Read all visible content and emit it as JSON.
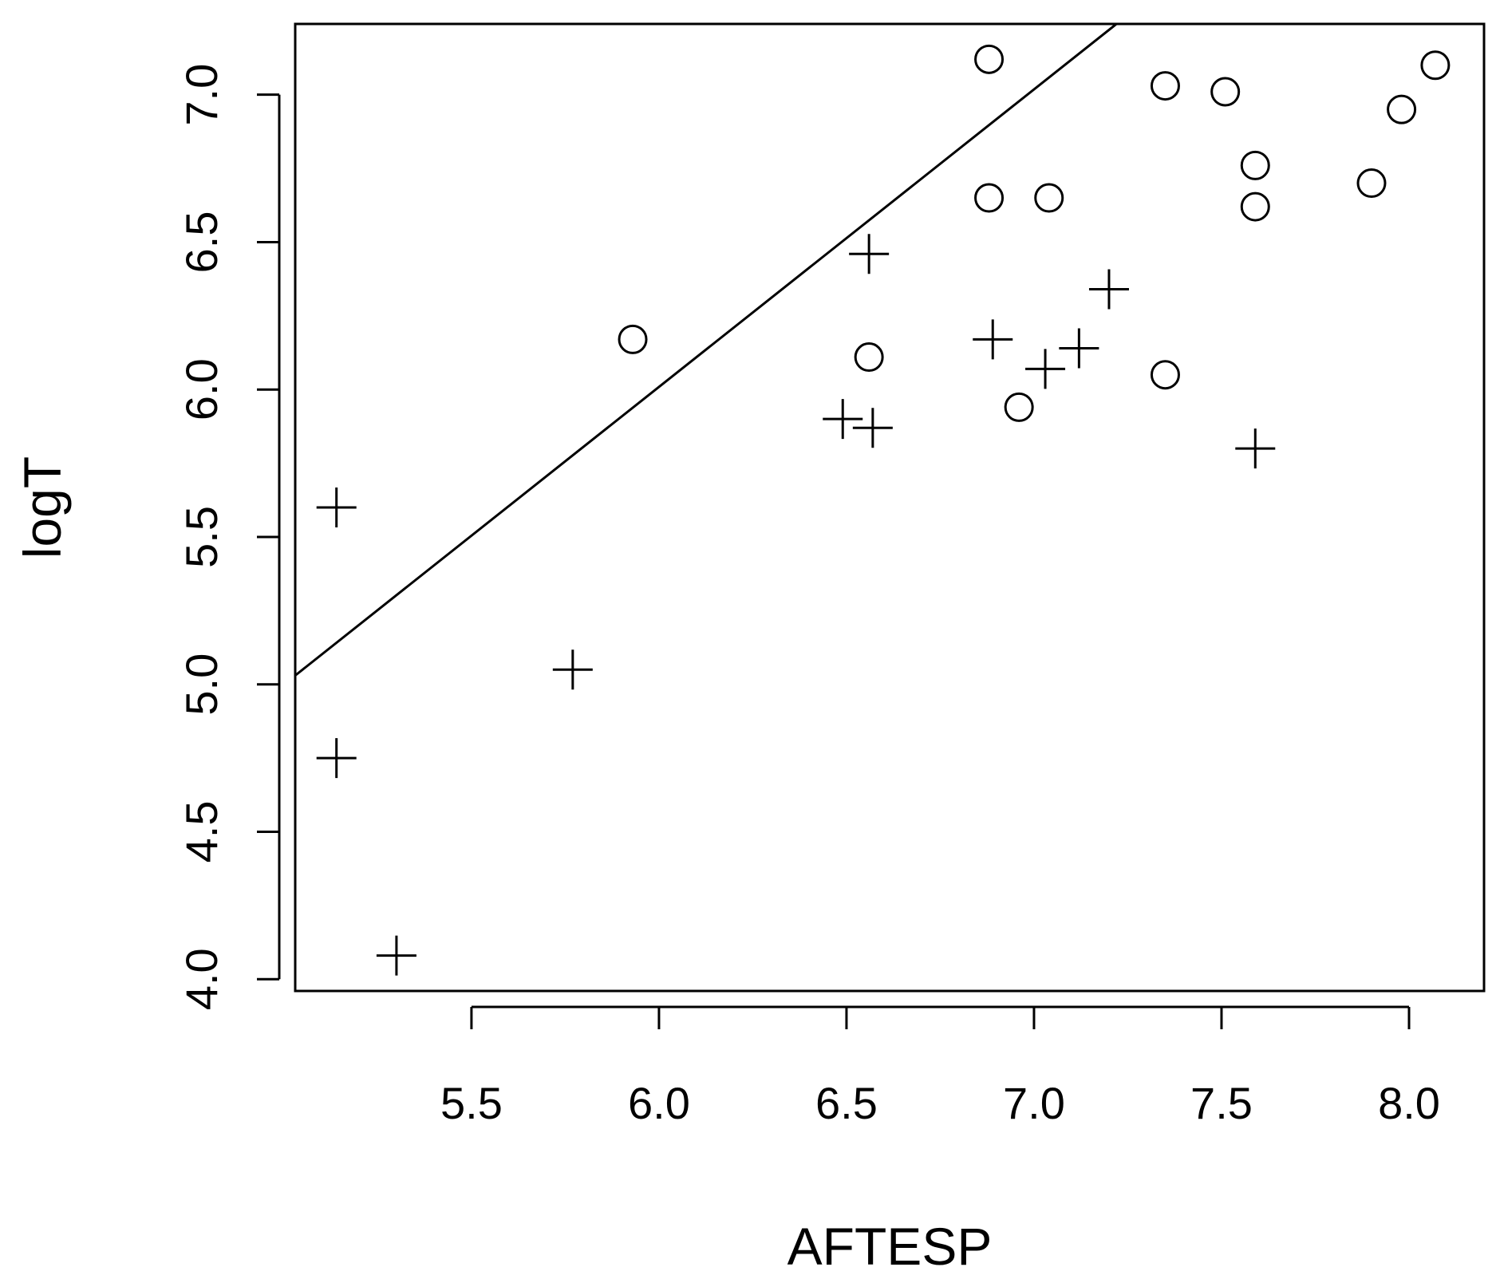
{
  "chart_data": {
    "type": "scatter",
    "xlabel": "AFTESP",
    "ylabel": "logT",
    "xlim": [
      5.03,
      8.2
    ],
    "ylim": [
      3.96,
      7.24
    ],
    "x_ticks": [
      "5.5",
      "6.0",
      "6.5",
      "7.0",
      "7.5",
      "8.0"
    ],
    "y_ticks": [
      "4.0",
      "4.5",
      "5.0",
      "5.5",
      "6.0",
      "6.5",
      "7.0"
    ],
    "grid": false,
    "legend": "none",
    "series": [
      {
        "marker": "circle",
        "points": [
          {
            "x": 5.93,
            "y": 6.17
          },
          {
            "x": 6.56,
            "y": 6.11
          },
          {
            "x": 6.88,
            "y": 7.12
          },
          {
            "x": 6.88,
            "y": 6.65
          },
          {
            "x": 6.96,
            "y": 5.94
          },
          {
            "x": 7.04,
            "y": 6.65
          },
          {
            "x": 7.35,
            "y": 7.03
          },
          {
            "x": 7.35,
            "y": 6.05
          },
          {
            "x": 7.51,
            "y": 7.01
          },
          {
            "x": 7.59,
            "y": 6.76
          },
          {
            "x": 7.59,
            "y": 6.62
          },
          {
            "x": 7.9,
            "y": 6.7
          },
          {
            "x": 7.98,
            "y": 6.95
          },
          {
            "x": 8.07,
            "y": 7.1
          }
        ]
      },
      {
        "marker": "plus",
        "points": [
          {
            "x": 5.14,
            "y": 5.6
          },
          {
            "x": 5.14,
            "y": 4.75
          },
          {
            "x": 5.3,
            "y": 4.08
          },
          {
            "x": 5.77,
            "y": 5.05
          },
          {
            "x": 6.49,
            "y": 5.9
          },
          {
            "x": 6.56,
            "y": 6.46
          },
          {
            "x": 6.57,
            "y": 5.87
          },
          {
            "x": 6.89,
            "y": 6.17
          },
          {
            "x": 7.03,
            "y": 6.07
          },
          {
            "x": 7.12,
            "y": 6.14
          },
          {
            "x": 7.2,
            "y": 6.34
          },
          {
            "x": 7.59,
            "y": 5.8
          }
        ]
      }
    ],
    "line": {
      "x": [
        5.03,
        7.22
      ],
      "y": [
        5.03,
        7.24
      ]
    }
  }
}
